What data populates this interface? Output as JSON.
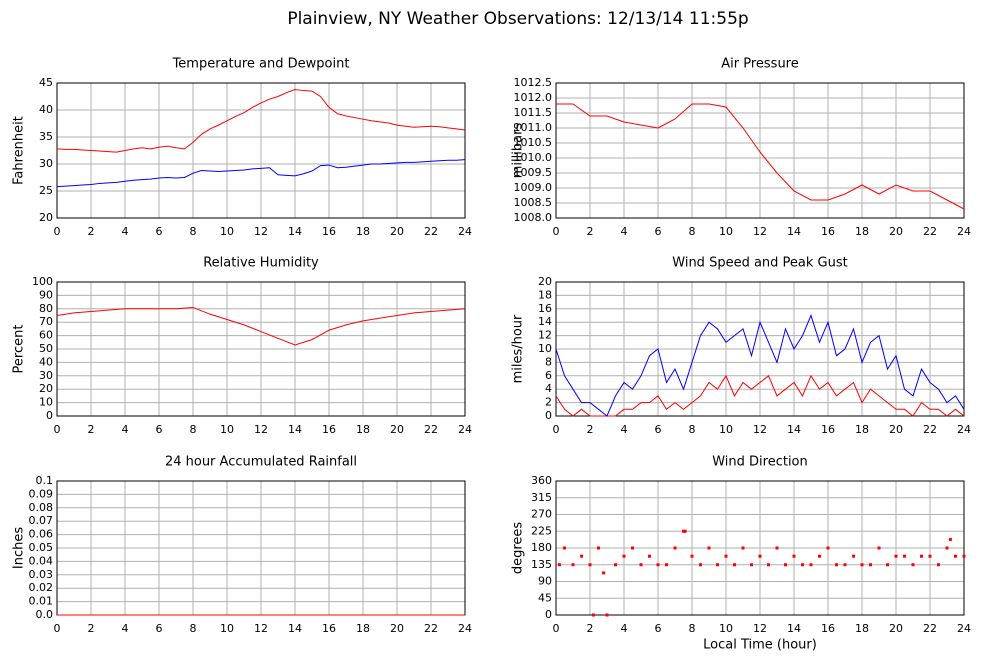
{
  "title": "Plainview, NY Weather Observations: 12/13/14 11:55p",
  "chart_data": [
    {
      "type": "line",
      "title": "Temperature and Dewpoint",
      "y_label": "Fahrenheit",
      "x": [
        0,
        0.5,
        1,
        1.5,
        2,
        2.5,
        3,
        3.5,
        4,
        4.5,
        5,
        5.5,
        6,
        6.5,
        7,
        7.5,
        8,
        8.5,
        9,
        9.5,
        10,
        10.5,
        11,
        11.5,
        12,
        12.5,
        13,
        13.5,
        14,
        14.5,
        15,
        15.5,
        16,
        16.5,
        17,
        17.5,
        18,
        18.5,
        19,
        19.5,
        20,
        20.5,
        21,
        21.5,
        22,
        22.5,
        23,
        23.5,
        24
      ],
      "series": [
        {
          "color": "#ff0000",
          "values": [
            32.8,
            32.7,
            32.7,
            32.6,
            32.5,
            32.4,
            32.3,
            32.2,
            32.5,
            32.8,
            33,
            32.8,
            33.1,
            33.3,
            33,
            32.8,
            34,
            35.5,
            36.5,
            37.2,
            38,
            38.8,
            39.5,
            40.5,
            41.3,
            42,
            42.5,
            43.2,
            43.8,
            43.6,
            43.5,
            42.5,
            40.5,
            39.3,
            38.9,
            38.6,
            38.3,
            38,
            37.8,
            37.6,
            37.2,
            37,
            36.8,
            36.9,
            37,
            36.9,
            36.7,
            36.5,
            36.3
          ]
        },
        {
          "color": "#0000ff",
          "values": [
            25.8,
            25.9,
            26,
            26.1,
            26.2,
            26.4,
            26.5,
            26.6,
            26.8,
            27,
            27.1,
            27.2,
            27.4,
            27.5,
            27.4,
            27.5,
            28.3,
            28.8,
            28.7,
            28.6,
            28.7,
            28.8,
            28.9,
            29.1,
            29.2,
            29.3,
            28,
            27.9,
            27.8,
            28.2,
            28.7,
            29.7,
            29.8,
            29.3,
            29.4,
            29.6,
            29.8,
            30,
            30,
            30.1,
            30.2,
            30.3,
            30.3,
            30.4,
            30.5,
            30.6,
            30.7,
            30.7,
            30.8
          ]
        }
      ],
      "xlim": [
        0,
        24
      ],
      "xticks": [
        0,
        2,
        4,
        6,
        8,
        10,
        12,
        14,
        16,
        18,
        20,
        22,
        24
      ],
      "ylim": [
        20,
        45
      ],
      "yticks": [
        20,
        25,
        30,
        35,
        40,
        45
      ],
      "grid": true
    },
    {
      "type": "line",
      "title": "Air Pressure",
      "y_label": "millibars",
      "x": [
        0,
        1,
        2,
        3,
        4,
        5,
        6,
        7,
        8,
        9,
        10,
        11,
        12,
        13,
        14,
        15,
        16,
        17,
        18,
        19,
        20,
        21,
        22,
        23,
        24
      ],
      "series": [
        {
          "color": "#ff0000",
          "values": [
            1011.8,
            1011.8,
            1011.4,
            1011.4,
            1011.2,
            1011.1,
            1011.0,
            1011.3,
            1011.8,
            1011.8,
            1011.7,
            1011.0,
            1010.2,
            1009.5,
            1008.9,
            1008.6,
            1008.6,
            1008.8,
            1009.1,
            1008.8,
            1009.1,
            1008.9,
            1008.9,
            1008.6,
            1008.3
          ]
        }
      ],
      "xlim": [
        0,
        24
      ],
      "xticks": [
        0,
        2,
        4,
        6,
        8,
        10,
        12,
        14,
        16,
        18,
        20,
        22,
        24
      ],
      "ylim": [
        1008,
        1012.5
      ],
      "yticks": [
        {
          "value": 1008,
          "label": "1008.0"
        },
        1008.5,
        {
          "value": 1009,
          "label": "1009.0"
        },
        1009.5,
        {
          "value": 1010,
          "label": "1010.0"
        },
        1010.5,
        {
          "value": 1011,
          "label": "1011.0"
        },
        1011.5,
        {
          "value": 1012,
          "label": "1012.0"
        },
        1012.5
      ],
      "grid": true
    },
    {
      "type": "line",
      "title": "Relative Humidity",
      "y_label": "Percent",
      "x": [
        0,
        1,
        2,
        3,
        4,
        5,
        6,
        7,
        8,
        9,
        10,
        11,
        12,
        13,
        14,
        15,
        16,
        17,
        18,
        19,
        20,
        21,
        22,
        23,
        24
      ],
      "series": [
        {
          "color": "#ff0000",
          "values": [
            75,
            77,
            78,
            79,
            80,
            80,
            80,
            80,
            81,
            76,
            72,
            68,
            63,
            58,
            53,
            57,
            64,
            68,
            71,
            73,
            75,
            77,
            78,
            79,
            80
          ]
        }
      ],
      "xlim": [
        0,
        24
      ],
      "xticks": [
        0,
        2,
        4,
        6,
        8,
        10,
        12,
        14,
        16,
        18,
        20,
        22,
        24
      ],
      "ylim": [
        0,
        100
      ],
      "yticks": [
        0,
        10,
        20,
        30,
        40,
        50,
        60,
        70,
        80,
        90,
        100
      ],
      "grid": true
    },
    {
      "type": "line",
      "title": "Wind Speed and Peak Gust",
      "y_label": "miles/hour",
      "x": [
        0,
        0.5,
        1,
        1.5,
        2,
        2.5,
        3,
        3.5,
        4,
        4.5,
        5,
        5.5,
        6,
        6.5,
        7,
        7.5,
        8,
        8.5,
        9,
        9.5,
        10,
        10.5,
        11,
        11.5,
        12,
        12.5,
        13,
        13.5,
        14,
        14.5,
        15,
        15.5,
        16,
        16.5,
        17,
        17.5,
        18,
        18.5,
        19,
        19.5,
        20,
        20.5,
        21,
        21.5,
        22,
        22.5,
        23,
        23.5,
        24
      ],
      "series": [
        {
          "color": "#ff0000",
          "values": [
            3,
            1,
            0,
            1,
            0,
            0,
            0,
            0,
            1,
            1,
            2,
            2,
            3,
            1,
            2,
            1,
            2,
            3,
            5,
            4,
            6,
            3,
            5,
            4,
            5,
            6,
            3,
            4,
            5,
            3,
            6,
            4,
            5,
            3,
            4,
            5,
            2,
            4,
            3,
            2,
            1,
            1,
            0,
            2,
            1,
            1,
            0,
            1,
            0
          ]
        },
        {
          "color": "#0000ff",
          "values": [
            10,
            6,
            4,
            2,
            2,
            1,
            0,
            3,
            5,
            4,
            6,
            9,
            10,
            5,
            7,
            4,
            8,
            12,
            14,
            13,
            11,
            12,
            13,
            9,
            14,
            11,
            8,
            13,
            10,
            12,
            15,
            11,
            14,
            9,
            10,
            13,
            8,
            11,
            12,
            7,
            9,
            4,
            3,
            7,
            5,
            4,
            2,
            3,
            1
          ]
        }
      ],
      "xlim": [
        0,
        24
      ],
      "xticks": [
        0,
        2,
        4,
        6,
        8,
        10,
        12,
        14,
        16,
        18,
        20,
        22,
        24
      ],
      "ylim": [
        0,
        20
      ],
      "yticks": [
        0,
        2,
        4,
        6,
        8,
        10,
        12,
        14,
        16,
        18,
        20
      ],
      "grid": true
    },
    {
      "type": "line",
      "title": "24 hour Accumulated Rainfall",
      "y_label": "Inches",
      "x": [
        0,
        24
      ],
      "series": [
        {
          "color": "#ff0000",
          "values": [
            0,
            0
          ]
        }
      ],
      "xlim": [
        0,
        24
      ],
      "xticks": [
        0,
        2,
        4,
        6,
        8,
        10,
        12,
        14,
        16,
        18,
        20,
        22,
        24
      ],
      "ylim": [
        0,
        0.1
      ],
      "yticks": [
        {
          "value": 0,
          "label": "0.0"
        },
        0.01,
        0.02,
        0.03,
        0.04,
        0.05,
        0.06,
        0.07,
        0.08,
        0.09,
        0.1
      ],
      "grid": true
    },
    {
      "type": "scatter",
      "title": "Wind Direction",
      "y_label": "degrees",
      "x_label": "Local Time (hour)",
      "x": [
        0.2,
        0.5,
        1,
        1.5,
        2,
        2.2,
        2.5,
        2.8,
        3,
        3.5,
        4,
        4.5,
        5,
        5.5,
        6,
        6.5,
        7,
        7.5,
        7.6,
        8,
        8.5,
        9,
        9.5,
        10,
        10.5,
        11,
        11.5,
        12,
        12.5,
        13,
        13.5,
        14,
        14.5,
        15,
        15.5,
        16,
        16.5,
        17,
        17.5,
        18,
        18.5,
        19,
        19.5,
        20,
        20.5,
        21,
        21.5,
        22,
        22.5,
        23,
        23.2,
        23.5,
        24
      ],
      "series": [
        {
          "color": "#ff0000",
          "values": [
            135,
            180,
            135,
            158,
            135,
            0,
            180,
            113,
            0,
            135,
            158,
            180,
            135,
            158,
            135,
            135,
            180,
            225,
            225,
            158,
            135,
            180,
            135,
            158,
            135,
            180,
            135,
            158,
            135,
            180,
            135,
            158,
            135,
            135,
            158,
            180,
            135,
            135,
            158,
            135,
            135,
            180,
            135,
            158,
            158,
            135,
            158,
            158,
            135,
            180,
            203,
            158,
            158
          ]
        }
      ],
      "xlim": [
        0,
        24
      ],
      "xticks": [
        0,
        2,
        4,
        6,
        8,
        10,
        12,
        14,
        16,
        18,
        20,
        22,
        24
      ],
      "ylim": [
        0,
        360
      ],
      "yticks": [
        0,
        45,
        90,
        135,
        180,
        225,
        270,
        315,
        360
      ],
      "grid": true
    }
  ]
}
